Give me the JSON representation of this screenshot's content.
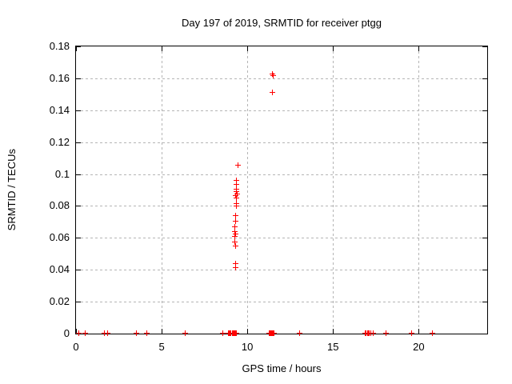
{
  "chart_data": {
    "type": "scatter",
    "title": "Day 197 of 2019, SRMTID for receiver ptgg",
    "xlabel": "GPS time / hours",
    "ylabel": "SRMTID / TECUs",
    "xlim": [
      0,
      24
    ],
    "ylim": [
      0,
      0.18
    ],
    "grid": true,
    "legend": "none",
    "marker": "plus",
    "colors": {
      "marker": "#ff0000",
      "grid": "#b5b5b5",
      "axis": "#000000",
      "background": "#ffffff"
    },
    "xticks": [
      {
        "v": 0,
        "label": "0"
      },
      {
        "v": 5,
        "label": "5"
      },
      {
        "v": 10,
        "label": "10"
      },
      {
        "v": 15,
        "label": "15"
      },
      {
        "v": 20,
        "label": "20"
      }
    ],
    "yticks": [
      {
        "v": 0.0,
        "label": "0"
      },
      {
        "v": 0.02,
        "label": "0.02"
      },
      {
        "v": 0.04,
        "label": "0.04"
      },
      {
        "v": 0.06,
        "label": "0.06"
      },
      {
        "v": 0.08,
        "label": "0.08"
      },
      {
        "v": 0.1,
        "label": "0.1"
      },
      {
        "v": 0.12,
        "label": "0.12"
      },
      {
        "v": 0.14,
        "label": "0.14"
      },
      {
        "v": 0.16,
        "label": "0.16"
      },
      {
        "v": 0.18,
        "label": "0.18"
      }
    ],
    "series": [
      {
        "name": "SRMTID",
        "points": [
          [
            9.49,
            0.1055
          ],
          [
            9.39,
            0.096
          ],
          [
            9.39,
            0.0935
          ],
          [
            9.4,
            0.0905
          ],
          [
            9.38,
            0.0885
          ],
          [
            9.41,
            0.0872
          ],
          [
            9.36,
            0.086
          ],
          [
            9.38,
            0.0848
          ],
          [
            9.39,
            0.081
          ],
          [
            9.4,
            0.0795
          ],
          [
            9.33,
            0.0735
          ],
          [
            9.33,
            0.0702
          ],
          [
            9.31,
            0.0668
          ],
          [
            9.3,
            0.0635
          ],
          [
            9.34,
            0.0622
          ],
          [
            9.31,
            0.0605
          ],
          [
            9.31,
            0.057
          ],
          [
            9.32,
            0.0545
          ],
          [
            9.32,
            0.0435
          ],
          [
            9.33,
            0.041
          ],
          [
            11.48,
            0.1625
          ],
          [
            11.51,
            0.1612
          ],
          [
            11.5,
            0.151
          ],
          [
            0.2,
            0
          ],
          [
            0.55,
            0
          ],
          [
            1.7,
            0
          ],
          [
            1.87,
            0
          ],
          [
            3.57,
            0
          ],
          [
            4.15,
            0
          ],
          [
            6.42,
            0
          ],
          [
            8.57,
            0
          ],
          [
            8.93,
            0
          ],
          [
            8.98,
            0
          ],
          [
            9.03,
            0
          ],
          [
            9.08,
            0
          ],
          [
            9.13,
            0
          ],
          [
            9.18,
            0
          ],
          [
            9.23,
            0
          ],
          [
            9.28,
            0
          ],
          [
            9.33,
            0
          ],
          [
            9.38,
            0
          ],
          [
            11.3,
            0
          ],
          [
            11.35,
            0
          ],
          [
            11.4,
            0
          ],
          [
            11.45,
            0
          ],
          [
            11.5,
            0
          ],
          [
            11.55,
            0
          ],
          [
            11.6,
            0
          ],
          [
            13.08,
            0
          ],
          [
            16.92,
            0
          ],
          [
            16.97,
            0
          ],
          [
            17.02,
            0
          ],
          [
            17.07,
            0
          ],
          [
            17.12,
            0
          ],
          [
            17.25,
            0
          ],
          [
            17.38,
            0
          ],
          [
            18.12,
            0
          ],
          [
            19.63,
            0
          ],
          [
            20.83,
            0
          ]
        ]
      }
    ]
  }
}
